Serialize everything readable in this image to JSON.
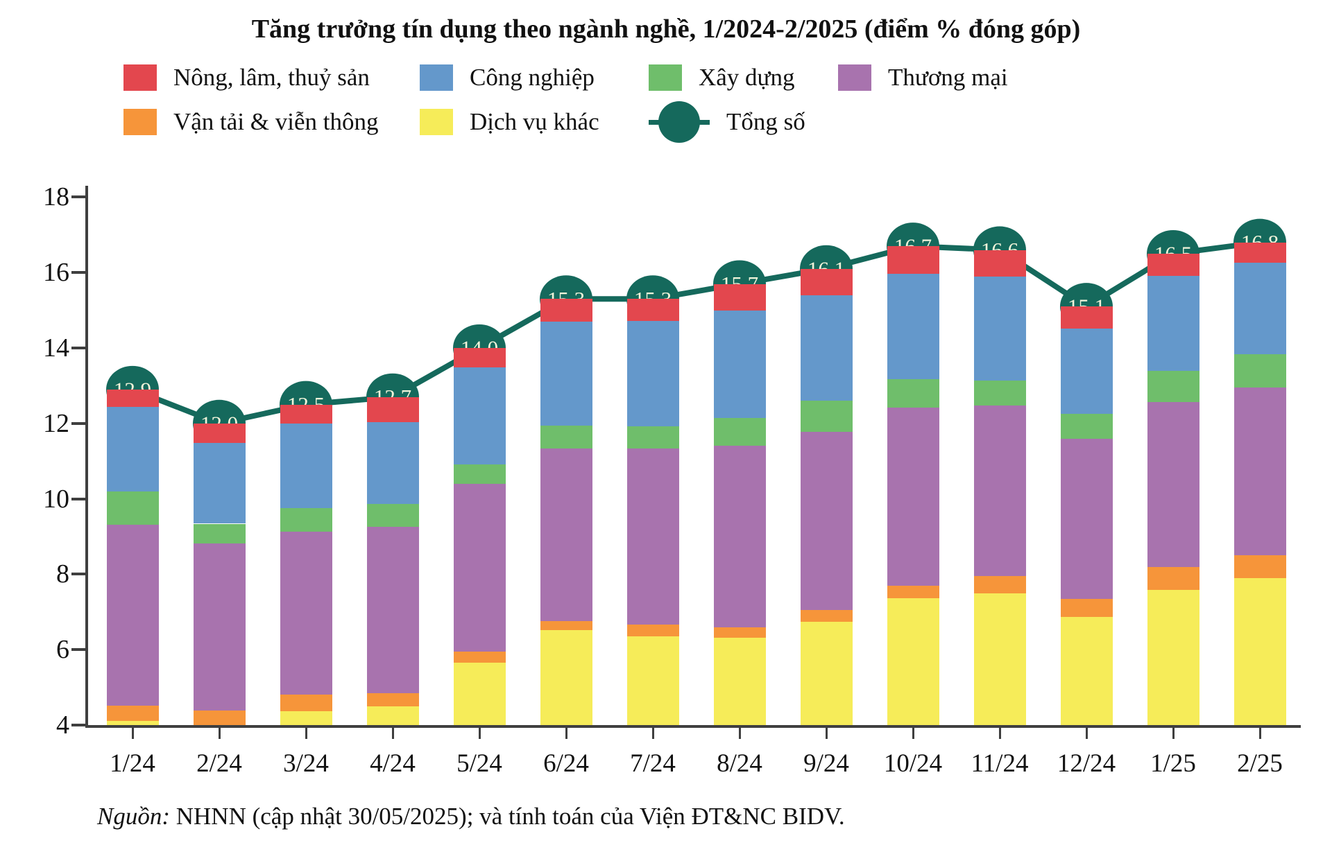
{
  "title": "Tăng trưởng tín dụng theo ngành nghề, 1/2024-2/2025 (điểm % đóng góp)",
  "legend": {
    "items": [
      {
        "label": "Nông, lâm, thuỷ sản",
        "color": "#e3474e",
        "type": "swatch"
      },
      {
        "label": "Công nghiệp",
        "color": "#6498cb",
        "type": "swatch"
      },
      {
        "label": "Xây dựng",
        "color": "#6fbe6b",
        "type": "swatch"
      },
      {
        "label": "Thương mại",
        "color": "#a873ae",
        "type": "swatch"
      },
      {
        "label": "Vận tải & viễn thông",
        "color": "#f6953a",
        "type": "swatch"
      },
      {
        "label": "Dịch vụ khác",
        "color": "#f6ec59",
        "type": "swatch"
      },
      {
        "label": "Tổng số",
        "color": "#15695c",
        "type": "circle-line-marker"
      }
    ]
  },
  "chart_data": {
    "type": "bar",
    "subtype": "stacked-bars-with-total-line",
    "categories": [
      "1/24",
      "2/24",
      "3/24",
      "4/24",
      "5/24",
      "6/24",
      "7/24",
      "8/24",
      "9/24",
      "10/24",
      "11/24",
      "12/24",
      "1/25",
      "2/25"
    ],
    "series": [
      {
        "name": "Dịch vụ khác",
        "color": "#f6ec59",
        "values": [
          4.11,
          3.98,
          4.37,
          4.5,
          5.65,
          6.52,
          6.35,
          6.31,
          6.74,
          7.36,
          7.5,
          6.87,
          7.58,
          7.9
        ]
      },
      {
        "name": "Vận tải & viễn thông",
        "color": "#f6953a",
        "values": [
          0.41,
          0.4,
          0.43,
          0.35,
          0.29,
          0.23,
          0.32,
          0.29,
          0.32,
          0.33,
          0.46,
          0.47,
          0.62,
          0.6
        ]
      },
      {
        "name": "Thương mại",
        "color": "#a873ae",
        "values": [
          4.79,
          4.44,
          4.33,
          4.4,
          4.45,
          4.58,
          4.66,
          4.8,
          4.71,
          4.73,
          4.52,
          4.26,
          4.37,
          4.46
        ]
      },
      {
        "name": "Xây dựng",
        "color": "#6fbe6b",
        "values": [
          0.89,
          0.52,
          0.62,
          0.61,
          0.53,
          0.62,
          0.6,
          0.75,
          0.84,
          0.76,
          0.66,
          0.65,
          0.83,
          0.88
        ]
      },
      {
        "name": "Công nghiệp",
        "color": "#6498cb",
        "values": [
          2.23,
          2.15,
          2.24,
          2.18,
          2.57,
          2.75,
          2.79,
          2.84,
          2.78,
          2.78,
          2.76,
          2.26,
          2.52,
          2.42
        ]
      },
      {
        "name": "Nông, lâm, thuỷ sản",
        "color": "#e3474e",
        "values": [
          0.47,
          0.51,
          0.51,
          0.66,
          0.51,
          0.6,
          0.58,
          0.71,
          0.71,
          0.74,
          0.7,
          0.59,
          0.58,
          0.54
        ]
      }
    ],
    "line": {
      "name": "Tổng số",
      "color": "#15695c",
      "label_text_color": "#f1f4da",
      "values": [
        12.9,
        12.0,
        12.5,
        12.7,
        14.0,
        15.3,
        15.3,
        15.7,
        16.1,
        16.7,
        16.6,
        15.1,
        16.5,
        16.8
      ],
      "labels": [
        "12,9",
        "12,0",
        "12,5",
        "12,7",
        "14,0",
        "15,3",
        "15,3",
        "15,7",
        "16,1",
        "16,7",
        "16,6",
        "15,1",
        "16,5",
        "16,8"
      ]
    },
    "ylim": [
      4,
      18
    ],
    "yticks": [
      4,
      6,
      8,
      10,
      12,
      14,
      16,
      18
    ],
    "grid": false,
    "legend_position": "top"
  },
  "source": {
    "prefix": "Nguồn:",
    "text": " NHNN (cập nhật 30/05/2025); và tính toán của Viện ĐT&NC BIDV."
  }
}
